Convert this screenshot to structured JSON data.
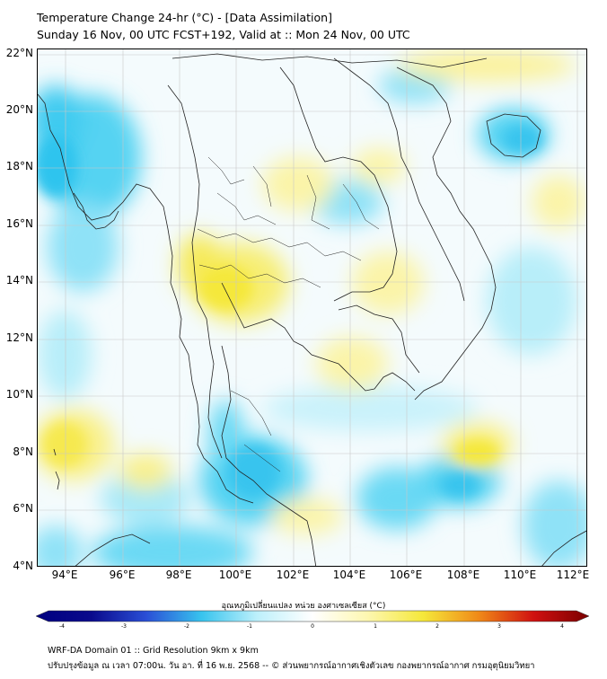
{
  "header": {
    "title_line1": "Temperature Change 24-hr (°C) - [Data Assimilation]",
    "title_line2": "Sunday 16 Nov, 00 UTC FCST+192, Valid at :: Mon 24 Nov, 00 UTC"
  },
  "map": {
    "lat_labels": [
      "22°N",
      "20°N",
      "18°N",
      "16°N",
      "14°N",
      "12°N",
      "10°N",
      "8°N",
      "6°N",
      "4°N"
    ],
    "lon_labels": [
      "94°E",
      "96°E",
      "98°E",
      "100°E",
      "102°E",
      "104°E",
      "106°E",
      "108°E",
      "110°E",
      "112°E"
    ]
  },
  "colorbar": {
    "title": "อุณหภูมิเปลี่ยนแปลง หน่วย องศาเซลเซียส (°C)",
    "ticks": [
      "-4",
      "-3",
      "-2",
      "-1",
      "0",
      "1",
      "2",
      "3",
      "4"
    ],
    "colors": {
      "neg_dark": "#0a0a8c",
      "neg_mid": "#2a4fd6",
      "cyan": "#38c4ee",
      "light_cyan": "#bdf0fb",
      "zero": "#ffffff",
      "light_yellow": "#fdf7b0",
      "yellow": "#f5e83a",
      "orange": "#f08a18",
      "red": "#d01010",
      "pos_dark": "#7a0000"
    }
  },
  "footer": {
    "line1": "WRF-DA Domain 01 :: Grid Resolution 9km x 9km",
    "line2": "ปรับปรุงข้อมูล ณ เวลา 07:00น. วัน อา. ที่ 16 พ.ย. 2568 -- © ส่วนพยากรณ์อากาศเชิงตัวเลข กองพยากรณ์อากาศ กรมอุตุนิยมวิทยา"
  }
}
